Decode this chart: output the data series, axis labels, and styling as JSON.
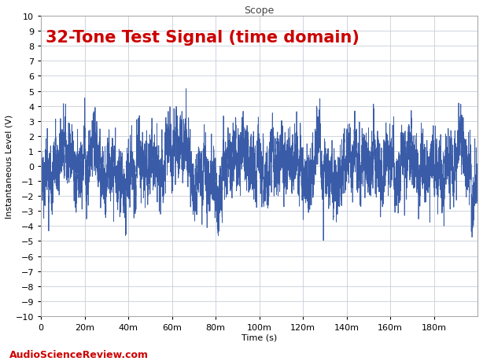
{
  "title": "Scope",
  "subtitle": "32-Tone Test Signal (time domain)",
  "subtitle_color": "#cc0000",
  "xlabel": "Time (s)",
  "ylabel": "Instantaneous Level (V)",
  "xlim": [
    0,
    0.2
  ],
  "ylim": [
    -10,
    10
  ],
  "yticks": [
    -10,
    -9,
    -8,
    -7,
    -6,
    -5,
    -4,
    -3,
    -2,
    -1,
    0,
    1,
    2,
    3,
    4,
    5,
    6,
    7,
    8,
    9,
    10
  ],
  "xtick_positions": [
    0,
    0.02,
    0.04,
    0.06,
    0.08,
    0.1,
    0.12,
    0.14,
    0.16,
    0.18
  ],
  "xtick_labels": [
    "0",
    "20m",
    "40m",
    "60m",
    "80m",
    "100m",
    "120m",
    "140m",
    "160m",
    "180m"
  ],
  "line_color": "#3a5ca8",
  "line_width": 0.6,
  "grid_color": "#c8cfd8",
  "grid_alpha": 1.0,
  "bg_color": "#ffffff",
  "watermark": "AudioScienceReview.com",
  "watermark_color": "#cc0000",
  "title_fontsize": 9,
  "subtitle_fontsize": 15,
  "axis_label_fontsize": 8,
  "tick_fontsize": 8,
  "n_samples": 400000,
  "n_tones": 32,
  "seed": 7
}
